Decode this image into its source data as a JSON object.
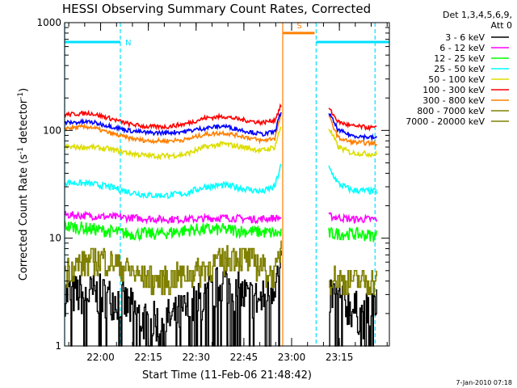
{
  "chart_data": {
    "type": "line",
    "title": "HESSI Observing Summary Count Rates, Corrected",
    "xlabel": "Start Time (11-Feb-06 21:48:42)",
    "ylabel_main": "Corrected Count Rate (s",
    "ylabel_sup1": "-1",
    "ylabel_mid": " detector",
    "ylabel_sup2": "-1",
    "ylabel_end": ")",
    "yscale": "log",
    "ylim": [
      1,
      1000
    ],
    "xlim_minutes": [
      0,
      102
    ],
    "y_ticks": [
      "1",
      "10",
      "100",
      "1000"
    ],
    "x_ticks": [
      {
        "label": "22:00",
        "minute": 11.3
      },
      {
        "label": "22:15",
        "minute": 26.3
      },
      {
        "label": "22:30",
        "minute": 41.3
      },
      {
        "label": "22:45",
        "minute": 56.3
      },
      {
        "label": "23:00",
        "minute": 71.3
      },
      {
        "label": "23:15",
        "minute": 86.3
      }
    ],
    "legend_header": [
      "Det 1,3,4,5,6,9,",
      "Att 0"
    ],
    "legend_placement": "right",
    "series": [
      {
        "name": "3 - 6 keV",
        "color": "#000000",
        "times": [
          0,
          10,
          18,
          26,
          34,
          42,
          50,
          55,
          62,
          68
        ],
        "values": [
          3,
          3,
          2.6,
          1.6,
          1.8,
          2.5,
          4,
          3,
          2.6,
          5
        ],
        "times2": [
          83,
          88,
          94,
          98
        ],
        "values2": [
          3,
          2.5,
          1.8,
          2.8
        ],
        "noise": 0.2,
        "spikes": true
      },
      {
        "name": "6 - 12 keV",
        "color": "#ff00ff",
        "times": [
          0,
          10,
          20,
          30,
          40,
          50,
          60,
          68
        ],
        "values": [
          16.5,
          16,
          15.5,
          15,
          15,
          15.5,
          15,
          15.5
        ],
        "times2": [
          83,
          90,
          98
        ],
        "values2": [
          16,
          15,
          15
        ],
        "noise": 0.035
      },
      {
        "name": "12 - 25 keV",
        "color": "#00ff00",
        "times": [
          0,
          10,
          20,
          30,
          40,
          50,
          60,
          68
        ],
        "values": [
          13,
          12,
          11,
          11,
          12,
          12,
          11.5,
          11
        ],
        "times2": [
          83,
          90,
          98
        ],
        "values2": [
          11,
          11,
          10.5
        ],
        "noise": 0.06
      },
      {
        "name": "25 - 50 keV",
        "color": "#00ffff",
        "times": [
          0,
          8,
          14,
          20,
          26,
          32,
          38,
          44,
          50,
          56,
          62,
          66,
          68
        ],
        "values": [
          33,
          32,
          30,
          27,
          25,
          25,
          26,
          30,
          31,
          29,
          27,
          30,
          48
        ],
        "times2": [
          83,
          86,
          90,
          98
        ],
        "values2": [
          45,
          32,
          28,
          27
        ],
        "noise": 0.03
      },
      {
        "name": "50 - 100 keV",
        "color": "#dddd00",
        "times": [
          0,
          8,
          14,
          20,
          26,
          32,
          38,
          44,
          50,
          56,
          62,
          66,
          68
        ],
        "values": [
          70,
          70,
          67,
          62,
          58,
          58,
          60,
          70,
          75,
          70,
          65,
          70,
          110
        ],
        "times2": [
          83,
          86,
          90,
          98
        ],
        "values2": [
          105,
          70,
          62,
          60
        ],
        "noise": 0.025
      },
      {
        "name": "100 - 300 keV",
        "color": "#ff0000",
        "times": [
          0,
          8,
          14,
          20,
          26,
          32,
          38,
          44,
          50,
          56,
          62,
          66,
          68
        ],
        "values": [
          140,
          145,
          130,
          115,
          108,
          108,
          115,
          130,
          135,
          125,
          118,
          125,
          170
        ],
        "times2": [
          83,
          86,
          90,
          98
        ],
        "values2": [
          160,
          120,
          110,
          105
        ],
        "noise": 0.02
      },
      {
        "name": "300 - 800 keV",
        "color": "#ff8000",
        "times": [
          0,
          8,
          14,
          20,
          26,
          32,
          38,
          44,
          50,
          56,
          62,
          66,
          68
        ],
        "values": [
          105,
          108,
          95,
          85,
          80,
          80,
          82,
          92,
          95,
          88,
          80,
          85,
          140
        ],
        "times2": [
          83,
          86,
          90,
          98
        ],
        "values2": [
          135,
          85,
          78,
          75
        ],
        "noise": 0.02
      },
      {
        "name": "800 - 7000 keV",
        "color": "#808000",
        "times": [
          0,
          6,
          12,
          18,
          24,
          30,
          36,
          42,
          48,
          54,
          60,
          66,
          68
        ],
        "values": [
          5,
          6,
          6.5,
          5.5,
          4.5,
          4,
          4.5,
          5,
          6,
          7,
          6,
          4.5,
          9
        ],
        "times2": [
          83,
          88,
          94,
          98
        ],
        "values2": [
          4.5,
          4,
          4,
          4
        ],
        "noise": 0.12,
        "stepped": true
      },
      {
        "name": "7000 - 20000 keV",
        "color": "#808000",
        "times": [
          0,
          68
        ],
        "values": [
          0,
          0
        ],
        "hidden": true
      }
    ],
    "blue_series": {
      "name": "",
      "color": "#0000ff",
      "times": [
        0,
        8,
        14,
        20,
        26,
        32,
        38,
        44,
        50,
        56,
        62,
        66,
        68
      ],
      "values": [
        118,
        120,
        110,
        100,
        95,
        95,
        98,
        105,
        110,
        100,
        92,
        97,
        150
      ],
      "times2": [
        83,
        86,
        90,
        98
      ],
      "values2": [
        145,
        100,
        90,
        85
      ],
      "noise": 0.02
    },
    "flags": [
      {
        "label": "N",
        "color": "#00e0ff",
        "start_minute": 0,
        "end_minute": 17.5,
        "y_value": 660
      },
      {
        "label": "S",
        "color": "#ff8000",
        "start_minute": 68.5,
        "end_minute": 78.5,
        "y_value": 800
      },
      {
        "label": "",
        "color": "#00e0ff",
        "start_minute": 79,
        "end_minute": 102,
        "y_value": 660
      }
    ],
    "vlines": [
      {
        "minute": 0,
        "color": "#00e0ff",
        "style": "solid"
      },
      {
        "minute": 17.5,
        "color": "#00e0ff",
        "style": "dashed"
      },
      {
        "minute": 68.5,
        "color": "#ff8000",
        "style": "solid"
      },
      {
        "minute": 79,
        "color": "#00e0ff",
        "style": "dashed"
      },
      {
        "minute": 97.5,
        "color": "#00e0ff",
        "style": "dashed"
      }
    ],
    "footer": "7-Jan-2010 07:18"
  }
}
